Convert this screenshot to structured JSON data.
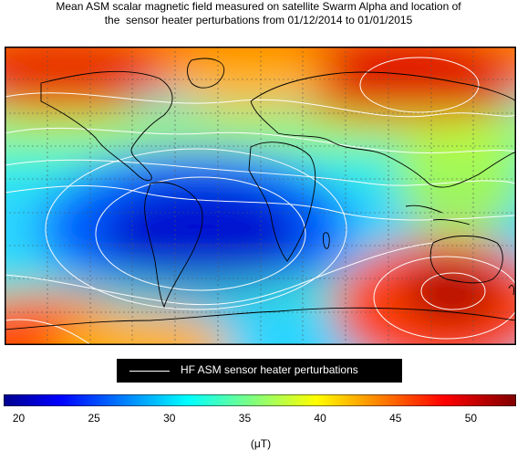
{
  "title": {
    "line1": "Mean ASM scalar magnetic field measured on satellite Swarm Alpha and location of",
    "line2": "the  sensor heater perturbations from 01/12/2014 to 01/01/2015"
  },
  "legend": {
    "label": "HF ASM sensor heater perturbations",
    "line_color": "#ffffff",
    "background": "#000000"
  },
  "colorbar": {
    "min": 19,
    "max": 53,
    "ticks": [
      "20",
      "25",
      "30",
      "35",
      "40",
      "45",
      "50"
    ],
    "unit": "(μT)",
    "colormap": "jet"
  },
  "map": {
    "projection": "equirectangular",
    "field": "mean scalar magnetic field",
    "contour_color": "#ffffff",
    "coastline_color": "#000000",
    "grid": true
  }
}
